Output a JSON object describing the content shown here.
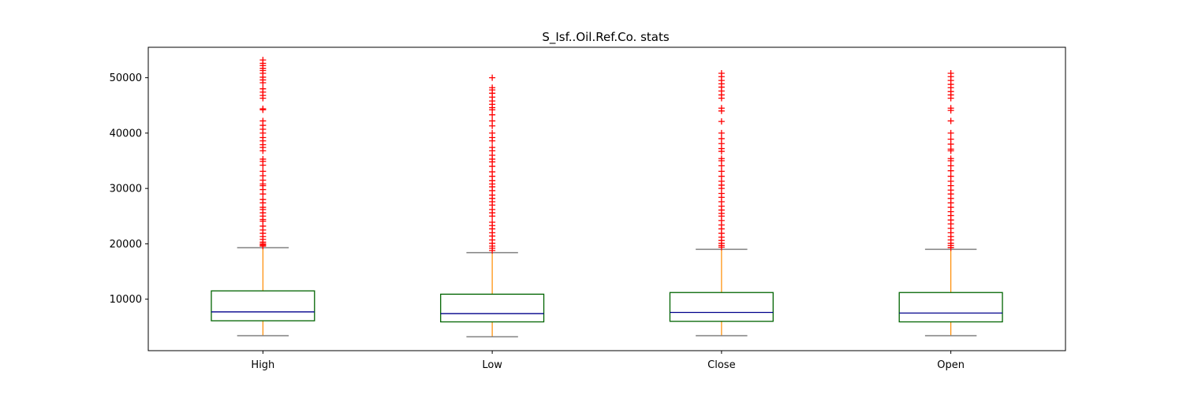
{
  "chart_data": {
    "type": "box",
    "title": "S_Isf..Oil.Ref.Co. stats",
    "xlabel": "",
    "ylabel": "",
    "categories": [
      "High",
      "Low",
      "Close",
      "Open"
    ],
    "ylim": [
      700,
      55500
    ],
    "yticks": [
      10000,
      20000,
      30000,
      40000,
      50000
    ],
    "ytick_labels": [
      "10000",
      "20000",
      "30000",
      "40000",
      "50000"
    ],
    "grid": false,
    "colors": {
      "box": "#006400",
      "median": "#00008b",
      "whisker": "#ff8c00",
      "cap": "#808080",
      "flier": "#ff0000"
    },
    "boxes": [
      {
        "name": "High",
        "whisker_low": 3400,
        "q1": 6100,
        "median": 7700,
        "q3": 11500,
        "whisker_high": 19300,
        "outliers": [
          19600,
          19800,
          20000,
          20300,
          20800,
          21300,
          21900,
          22500,
          23200,
          24100,
          24400,
          25000,
          25600,
          26200,
          26600,
          27400,
          28000,
          29000,
          29800,
          30500,
          30800,
          31500,
          32300,
          33100,
          34200,
          34900,
          35300,
          36800,
          37400,
          37900,
          38600,
          39200,
          40000,
          40700,
          41400,
          42200,
          44200,
          44400,
          46300,
          46800,
          47400,
          48000,
          49100,
          49600,
          50100,
          50800,
          51300,
          51700,
          52200,
          52600,
          53200
        ]
      },
      {
        "name": "Low",
        "whisker_low": 3200,
        "q1": 5900,
        "median": 7400,
        "q3": 10900,
        "whisker_high": 18400,
        "outliers": [
          18800,
          19200,
          19600,
          20100,
          20700,
          21400,
          22000,
          22700,
          23300,
          23900,
          25000,
          25600,
          26200,
          27000,
          27600,
          28200,
          28800,
          29600,
          30300,
          30800,
          31400,
          32200,
          33000,
          34000,
          34800,
          35300,
          36000,
          36800,
          37400,
          38600,
          39200,
          40000,
          41300,
          42200,
          43300,
          44200,
          44600,
          45200,
          45800,
          46500,
          47200,
          47800,
          48200,
          50000
        ]
      },
      {
        "name": "Close",
        "whisker_low": 3400,
        "q1": 6000,
        "median": 7600,
        "q3": 11200,
        "whisker_high": 19000,
        "outliers": [
          19400,
          19700,
          20100,
          20600,
          21200,
          21900,
          22700,
          23400,
          24200,
          25000,
          25500,
          26100,
          26800,
          27600,
          28400,
          29100,
          30000,
          30600,
          31300,
          32200,
          33100,
          34100,
          35000,
          35400,
          36700,
          37200,
          38100,
          39000,
          40000,
          42100,
          44000,
          44500,
          46300,
          46900,
          47600,
          48300,
          48900,
          49500,
          50200,
          50800
        ]
      },
      {
        "name": "Open",
        "whisker_low": 3400,
        "q1": 5900,
        "median": 7500,
        "q3": 11200,
        "whisker_high": 19000,
        "outliers": [
          19300,
          19700,
          20100,
          20700,
          21300,
          22000,
          22800,
          23600,
          24300,
          25100,
          25800,
          26600,
          27400,
          28200,
          29000,
          29700,
          30500,
          31300,
          32200,
          33200,
          34100,
          35000,
          35400,
          36800,
          37100,
          38000,
          38900,
          40000,
          42200,
          44100,
          44500,
          46300,
          46900,
          47500,
          48200,
          48800,
          49500,
          50200,
          50800
        ]
      }
    ]
  }
}
